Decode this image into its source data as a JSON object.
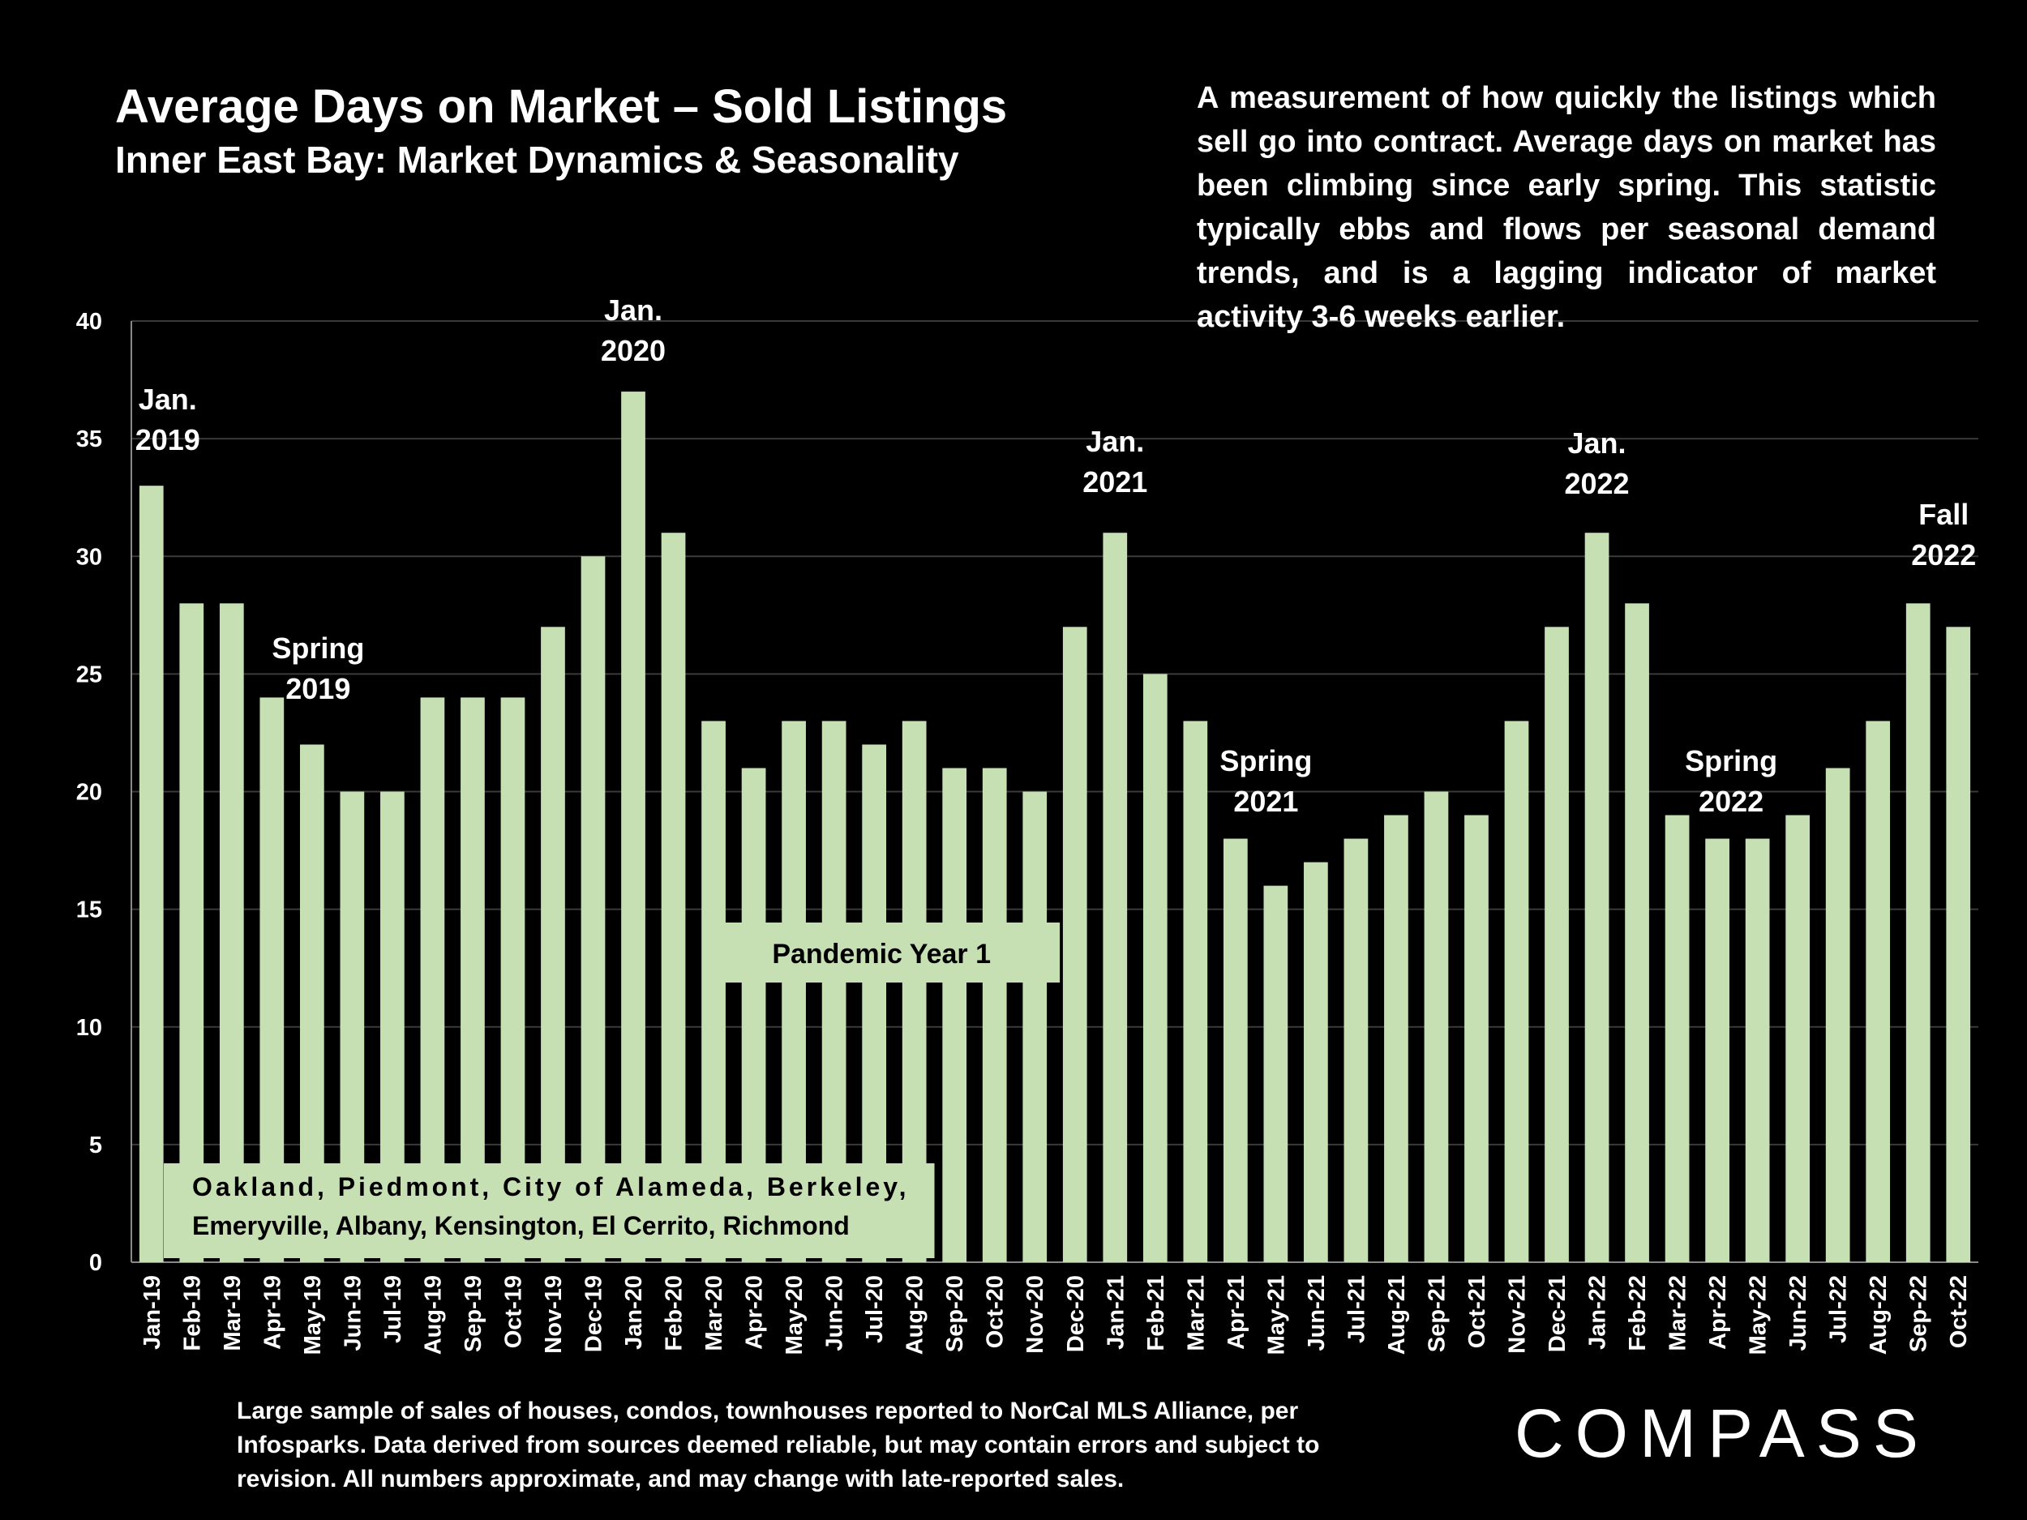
{
  "header": {
    "title": "Average Days on Market – Sold Listings",
    "subtitle": "Inner East Bay: Market Dynamics & Seasonality"
  },
  "description": "A measurement of how quickly the listings which sell go into contract. Average days on market has been climbing since early spring. This statistic typically ebbs and flows per seasonal demand trends, and is a lagging indicator of market activity 3-6 weeks earlier.",
  "footnote": "Large sample of sales of houses, condos, townhouses reported to NorCal MLS Alliance, per Infosparks. Data derived from sources deemed reliable, but may contain errors and subject to revision. All numbers approximate, and may change with late-reported sales.",
  "logo": "COMPASS",
  "colors": {
    "bar": "#c6e0b4",
    "background": "#000000",
    "text": "#ffffff",
    "grid": "#3a3a3a"
  },
  "chart_data": {
    "type": "bar",
    "title": "Average Days on Market – Sold Listings",
    "categories": [
      "Jan-19",
      "Feb-19",
      "Mar-19",
      "Apr-19",
      "May-19",
      "Jun-19",
      "Jul-19",
      "Aug-19",
      "Sep-19",
      "Oct-19",
      "Nov-19",
      "Dec-19",
      "Jan-20",
      "Feb-20",
      "Mar-20",
      "Apr-20",
      "May-20",
      "Jun-20",
      "Jul-20",
      "Aug-20",
      "Sep-20",
      "Oct-20",
      "Nov-20",
      "Dec-20",
      "Jan-21",
      "Feb-21",
      "Mar-21",
      "Apr-21",
      "May-21",
      "Jun-21",
      "Jul-21",
      "Aug-21",
      "Sep-21",
      "Oct-21",
      "Nov-21",
      "Dec-21",
      "Jan-22",
      "Feb-22",
      "Mar-22",
      "Apr-22",
      "May-22",
      "Jun-22",
      "Jul-22",
      "Aug-22",
      "Sep-22",
      "Oct-22"
    ],
    "values": [
      33,
      28,
      28,
      24,
      22,
      20,
      20,
      24,
      24,
      24,
      27,
      30,
      37,
      31,
      23,
      21,
      23,
      23,
      22,
      23,
      21,
      21,
      20,
      27,
      31,
      25,
      23,
      18,
      16,
      17,
      18,
      19,
      20,
      19,
      23,
      27,
      31,
      28,
      19,
      18,
      18,
      19,
      21,
      23,
      28,
      27
    ],
    "ylim": [
      0,
      40
    ],
    "yticks": [
      0,
      5,
      10,
      15,
      20,
      25,
      30,
      35,
      40
    ],
    "grid": true,
    "annotations": [
      {
        "lines": [
          "Jan.",
          "2019"
        ],
        "category": "Jan-19"
      },
      {
        "lines": [
          "Spring",
          "2019"
        ],
        "category": "Apr-19"
      },
      {
        "lines": [
          "Jan.",
          "2020"
        ],
        "category": "Jan-20"
      },
      {
        "lines": [
          "Jan.",
          "2021"
        ],
        "category": "Jan-21"
      },
      {
        "lines": [
          "Spring",
          "2021"
        ],
        "category": "May-21"
      },
      {
        "lines": [
          "Jan.",
          "2022"
        ],
        "category": "Jan-22"
      },
      {
        "lines": [
          "Spring",
          "2022"
        ],
        "category": "Apr-22"
      },
      {
        "lines": [
          "Fall",
          "2022"
        ],
        "category": "Oct-22"
      }
    ],
    "pandemic_label": "Pandemic Year 1",
    "area_label_lines": [
      "Oakland, Piedmont, City of Alameda, Berkeley,",
      "Emeryville, Albany, Kensington, El Cerrito, Richmond"
    ]
  }
}
